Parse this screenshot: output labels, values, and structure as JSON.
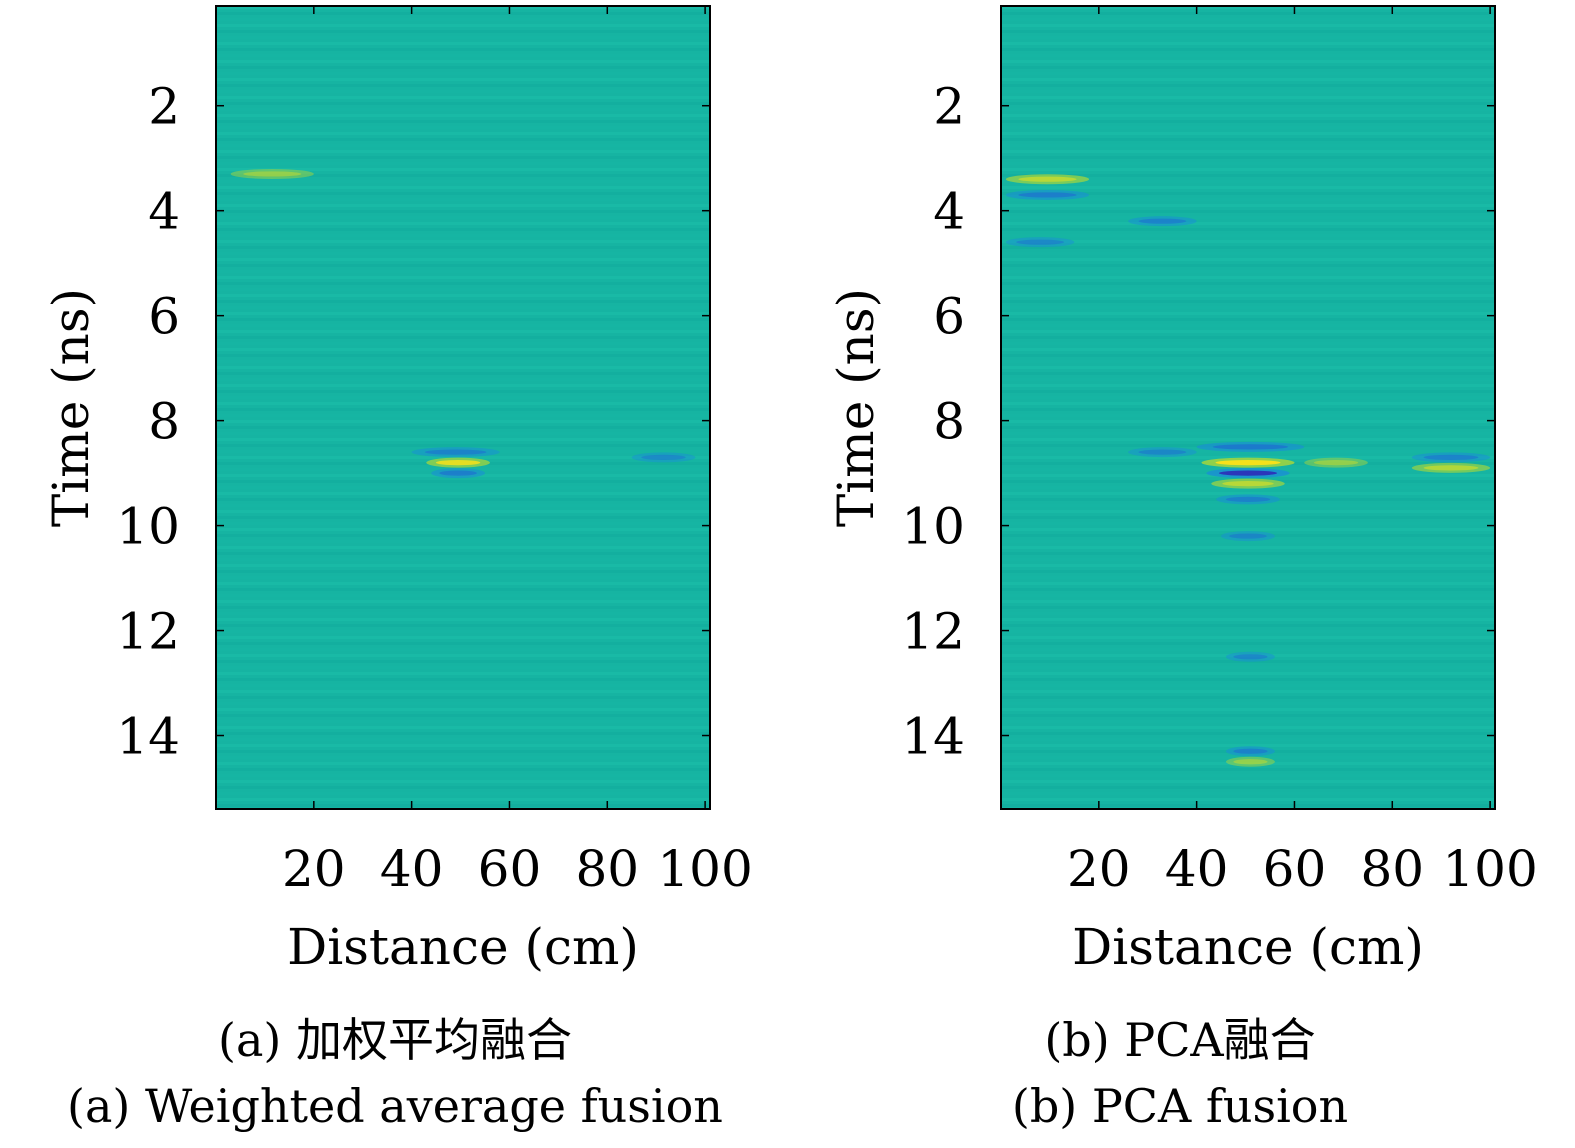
{
  "chart_data": [
    {
      "type": "heatmap",
      "title": "",
      "xlabel": "Distance (cm)",
      "ylabel": "Time (ns)",
      "xlim": [
        0,
        101
      ],
      "ylim": [
        15.4,
        0.1
      ],
      "y_inverted": true,
      "xticks": [
        20,
        40,
        60,
        80,
        100
      ],
      "yticks": [
        2,
        4,
        6,
        8,
        10,
        12,
        14
      ],
      "background_color": "#16b4a2",
      "features": [
        {
          "x": [
            3,
            20
          ],
          "y": 3.3,
          "polarity": "positive",
          "strength": 0.3
        },
        {
          "x": [
            40,
            58
          ],
          "y": 8.6,
          "polarity": "negative",
          "strength": 0.4
        },
        {
          "x": [
            43,
            56
          ],
          "y": 8.8,
          "polarity": "positive",
          "strength": 0.8
        },
        {
          "x": [
            44,
            55
          ],
          "y": 9.0,
          "polarity": "negative",
          "strength": 0.5
        },
        {
          "x": [
            85,
            98
          ],
          "y": 8.7,
          "polarity": "negative",
          "strength": 0.25
        }
      ],
      "caption_cn": "(a) 加权平均融合",
      "caption_en": "(a) Weighted average fusion"
    },
    {
      "type": "heatmap",
      "title": "",
      "xlabel": "Distance (cm)",
      "ylabel": "Time (ns)",
      "xlim": [
        0,
        101
      ],
      "ylim": [
        15.4,
        0.1
      ],
      "y_inverted": true,
      "xticks": [
        20,
        40,
        60,
        80,
        100
      ],
      "yticks": [
        2,
        4,
        6,
        8,
        10,
        12,
        14
      ],
      "background_color": "#16b4a2",
      "features": [
        {
          "x": [
            1,
            18
          ],
          "y": 3.4,
          "polarity": "positive",
          "strength": 0.7
        },
        {
          "x": [
            1,
            18
          ],
          "y": 3.7,
          "polarity": "negative",
          "strength": 0.5
        },
        {
          "x": [
            26,
            40
          ],
          "y": 4.2,
          "polarity": "negative",
          "strength": 0.4
        },
        {
          "x": [
            1,
            15
          ],
          "y": 4.6,
          "polarity": "negative",
          "strength": 0.3
        },
        {
          "x": [
            26,
            40
          ],
          "y": 8.6,
          "polarity": "negative",
          "strength": 0.3
        },
        {
          "x": [
            40,
            62
          ],
          "y": 8.5,
          "polarity": "negative",
          "strength": 0.6
        },
        {
          "x": [
            41,
            60
          ],
          "y": 8.8,
          "polarity": "positive",
          "strength": 1.0
        },
        {
          "x": [
            42,
            59
          ],
          "y": 9.0,
          "polarity": "negative",
          "strength": 0.9
        },
        {
          "x": [
            43,
            58
          ],
          "y": 9.2,
          "polarity": "positive",
          "strength": 0.7
        },
        {
          "x": [
            44,
            57
          ],
          "y": 9.5,
          "polarity": "negative",
          "strength": 0.4
        },
        {
          "x": [
            45,
            56
          ],
          "y": 10.2,
          "polarity": "negative",
          "strength": 0.3
        },
        {
          "x": [
            62,
            75
          ],
          "y": 8.8,
          "polarity": "positive",
          "strength": 0.3
        },
        {
          "x": [
            84,
            100
          ],
          "y": 8.7,
          "polarity": "negative",
          "strength": 0.4
        },
        {
          "x": [
            84,
            100
          ],
          "y": 8.9,
          "polarity": "positive",
          "strength": 0.6
        },
        {
          "x": [
            46,
            56
          ],
          "y": 12.5,
          "polarity": "negative",
          "strength": 0.3
        },
        {
          "x": [
            46,
            56
          ],
          "y": 14.3,
          "polarity": "negative",
          "strength": 0.4
        },
        {
          "x": [
            46,
            56
          ],
          "y": 14.5,
          "polarity": "positive",
          "strength": 0.3
        }
      ],
      "caption_cn": "(b) PCA融合",
      "caption_en": "(b) PCA fusion"
    }
  ]
}
